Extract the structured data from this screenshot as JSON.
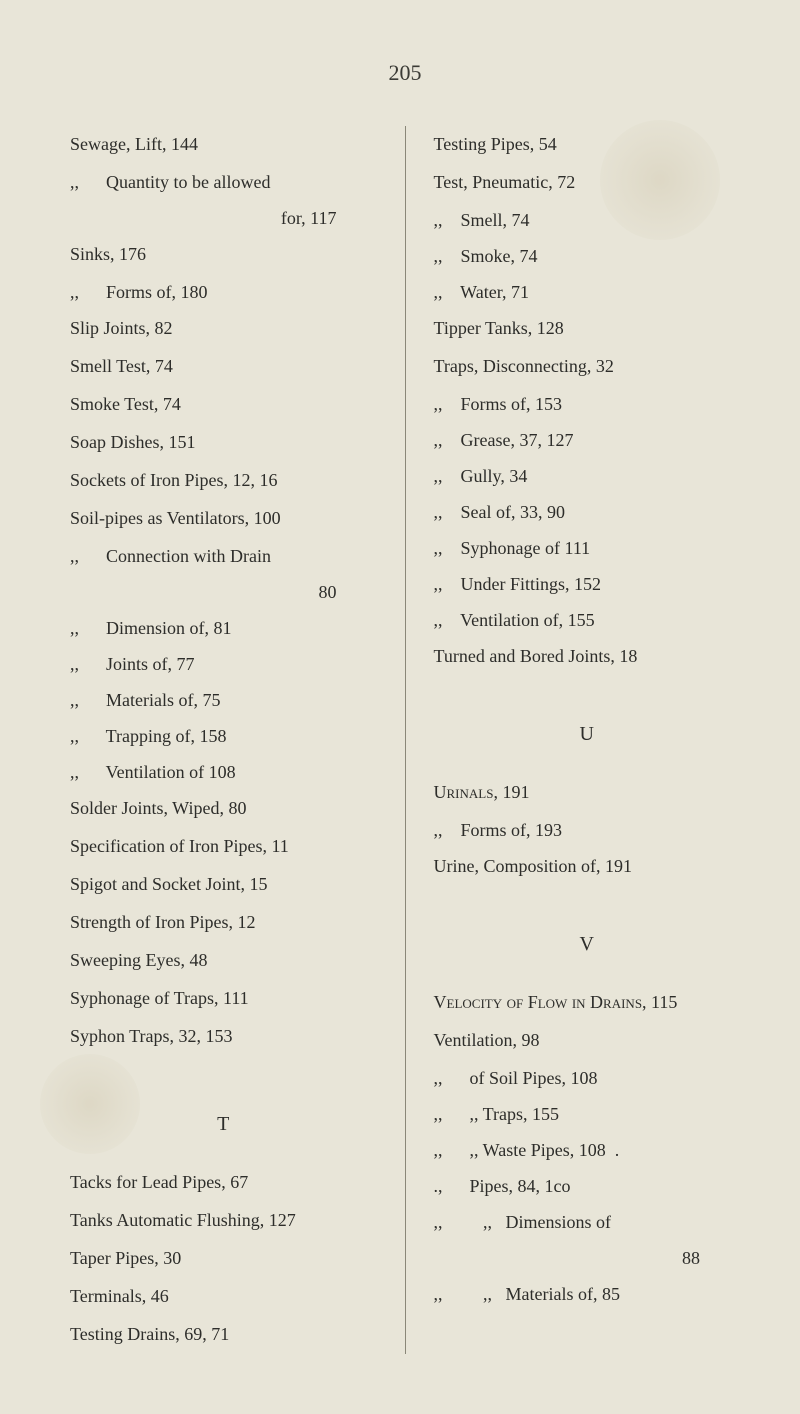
{
  "pageNumber": "205",
  "leftColumn": {
    "entries": [
      {
        "text": "Sewage, Lift, 144",
        "class": "entry"
      },
      {
        "text": ",,      Quantity to be allowed",
        "class": "sub-entry"
      },
      {
        "text": "for, 117",
        "class": "right-ind"
      },
      {
        "text": "Sinks, 176",
        "class": "entry"
      },
      {
        "text": ",,      Forms of, 180",
        "class": "sub-entry"
      },
      {
        "text": "Slip Joints, 82",
        "class": "entry"
      },
      {
        "text": "Smell Test, 74",
        "class": "entry"
      },
      {
        "text": "Smoke Test, 74",
        "class": "entry"
      },
      {
        "text": "Soap Dishes, 151",
        "class": "entry"
      },
      {
        "text": "Sockets of Iron Pipes, 12, 16",
        "class": "entry"
      },
      {
        "text": "Soil-pipes as Ventilators, 100",
        "class": "entry"
      },
      {
        "text": ",,      Connection with Drain",
        "class": "sub-entry"
      },
      {
        "text": "80",
        "class": "right-ind"
      },
      {
        "text": ",,      Dimension of, 81",
        "class": "sub-entry"
      },
      {
        "text": ",,      Joints of, 77",
        "class": "sub-entry"
      },
      {
        "text": ",,      Materials of, 75",
        "class": "sub-entry"
      },
      {
        "text": ",,      Trapping of, 158",
        "class": "sub-entry"
      },
      {
        "text": ",,      Ventilation of 108",
        "class": "sub-entry"
      },
      {
        "text": "Solder Joints, Wiped, 80",
        "class": "entry"
      },
      {
        "text": "Specification of Iron Pipes, 11",
        "class": "entry"
      },
      {
        "text": "Spigot and Socket Joint, 15",
        "class": "entry"
      },
      {
        "text": "Strength of Iron Pipes, 12",
        "class": "entry"
      },
      {
        "text": "Sweeping Eyes, 48",
        "class": "entry"
      },
      {
        "text": "Syphonage of Traps, 111",
        "class": "entry"
      },
      {
        "text": "Syphon Traps, 32, 153",
        "class": "entry"
      }
    ],
    "sectionT": {
      "letter": "T",
      "entries": [
        {
          "text": "Tacks for Lead Pipes, 67",
          "class": "entry"
        },
        {
          "text": "Tanks Automatic Flushing, 127",
          "class": "entry"
        },
        {
          "text": "Taper Pipes, 30",
          "class": "entry"
        },
        {
          "text": "Terminals, 46",
          "class": "entry"
        },
        {
          "text": "Testing Drains, 69, 71",
          "class": "entry"
        }
      ]
    }
  },
  "rightColumn": {
    "entries": [
      {
        "text": "Testing Pipes, 54",
        "class": "entry"
      },
      {
        "text": "Test, Pneumatic, 72",
        "class": "entry"
      },
      {
        "text": ",,    Smell, 74",
        "class": "sub-entry"
      },
      {
        "text": ",,    Smoke, 74",
        "class": "sub-entry"
      },
      {
        "text": ",,    Water, 71",
        "class": "sub-entry"
      },
      {
        "text": "Tipper Tanks, 128",
        "class": "entry"
      },
      {
        "text": "Traps, Disconnecting, 32",
        "class": "entry"
      },
      {
        "text": ",,    Forms of, 153",
        "class": "sub-entry"
      },
      {
        "text": ",,    Grease, 37, 127",
        "class": "sub-entry"
      },
      {
        "text": ",,    Gully, 34",
        "class": "sub-entry"
      },
      {
        "text": ",,    Seal of, 33, 90",
        "class": "sub-entry"
      },
      {
        "text": ",,    Syphonage of 111",
        "class": "sub-entry"
      },
      {
        "text": ",,    Under Fittings, 152",
        "class": "sub-entry"
      },
      {
        "text": ",,    Ventilation of, 155",
        "class": "sub-entry"
      },
      {
        "text": "Turned and Bored Joints, 18",
        "class": "entry"
      }
    ],
    "sectionU": {
      "letter": "U",
      "entries": [
        {
          "text": "Urinals, 191",
          "class": "entry smallcaps"
        },
        {
          "text": ",,    Forms of, 193",
          "class": "sub-entry"
        },
        {
          "text": "Urine, Composition of, 191",
          "class": "entry"
        }
      ]
    },
    "sectionV": {
      "letter": "V",
      "entries": [
        {
          "text": "Velocity of Flow in Drains, 115",
          "class": "entry smallcaps"
        },
        {
          "text": "Ventilation, 98",
          "class": "entry"
        },
        {
          "text": ",,      of Soil Pipes, 108",
          "class": "sub-entry"
        },
        {
          "text": ",,      ,, Traps, 155",
          "class": "sub-entry"
        },
        {
          "text": ",,      ,, Waste Pipes, 108  .",
          "class": "sub-entry"
        },
        {
          "text": ".,      Pipes, 84, 1co",
          "class": "sub-entry"
        },
        {
          "text": ",,         ,,   Dimensions of",
          "class": "sub-entry"
        },
        {
          "text": "88",
          "class": "right-ind"
        },
        {
          "text": ",,         ,,   Materials of, 85",
          "class": "sub-entry"
        }
      ]
    }
  }
}
